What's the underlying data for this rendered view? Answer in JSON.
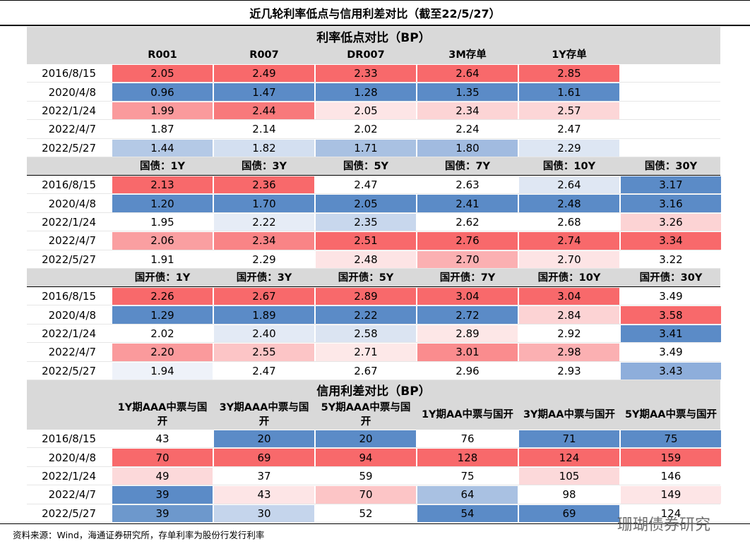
{
  "title": "近几轮利率低点与信用利差对比（截至22/5/27）",
  "sections": [
    {
      "heading": "利率低点对比（BP）",
      "columns": [
        "R001",
        "R007",
        "DR007",
        "3M存单",
        "1Y存单"
      ],
      "rows": [
        {
          "label": "2016/8/15",
          "cells": [
            "2.05",
            "2.49",
            "2.33",
            "2.64",
            "2.85"
          ],
          "colors": [
            "#f8696b",
            "#f8696b",
            "#f8696b",
            "#f8696b",
            "#f8696b"
          ]
        },
        {
          "label": "2020/4/8",
          "cells": [
            "0.96",
            "1.47",
            "1.28",
            "1.35",
            "1.61"
          ],
          "colors": [
            "#5b8bc7",
            "#5b8bc7",
            "#5b8bc7",
            "#5b8bc7",
            "#5b8bc7"
          ]
        },
        {
          "label": "2022/1/24",
          "cells": [
            "1.99",
            "2.44",
            "2.05",
            "2.34",
            "2.57"
          ],
          "colors": [
            "#fa9a9c",
            "#f8797b",
            "#fde5e6",
            "#fcd4d5",
            "#fcd6d7"
          ]
        },
        {
          "label": "2022/4/7",
          "cells": [
            "1.87",
            "2.14",
            "2.02",
            "2.24",
            "2.47"
          ],
          "colors": [
            "#ffffff",
            "#ffffff",
            "#ffffff",
            "#ffffff",
            "#ffffff"
          ]
        },
        {
          "label": "2022/5/27",
          "cells": [
            "1.44",
            "1.82",
            "1.71",
            "1.80",
            "2.29"
          ],
          "colors": [
            "#b4c9e6",
            "#d3dff0",
            "#a9c1e2",
            "#a1bbe0",
            "#dde6f3"
          ]
        }
      ]
    },
    {
      "columns": [
        "国债：1Y",
        "国债：3Y",
        "国债：5Y",
        "国债：7Y",
        "国债：10Y",
        "国债：30Y"
      ],
      "rows": [
        {
          "label": "2016/8/15",
          "cells": [
            "2.13",
            "2.36",
            "2.47",
            "2.63",
            "2.64",
            "3.17"
          ],
          "colors": [
            "#f8696b",
            "#f8696b",
            "#ffffff",
            "#ffffff",
            "#dfe7f3",
            "#5b8bc7"
          ]
        },
        {
          "label": "2020/4/8",
          "cells": [
            "1.20",
            "1.70",
            "2.05",
            "2.41",
            "2.48",
            "3.16"
          ],
          "colors": [
            "#5b8bc7",
            "#5b8bc7",
            "#5b8bc7",
            "#5b8bc7",
            "#5b8bc7",
            "#5b8bc7"
          ]
        },
        {
          "label": "2022/1/24",
          "cells": [
            "1.95",
            "2.22",
            "2.35",
            "2.62",
            "2.68",
            "3.26"
          ],
          "colors": [
            "#ffffff",
            "#e6ecf6",
            "#c8d7ed",
            "#ffffff",
            "#ffffff",
            "#fcd3d4"
          ]
        },
        {
          "label": "2022/4/7",
          "cells": [
            "2.06",
            "2.34",
            "2.51",
            "2.76",
            "2.74",
            "3.34"
          ],
          "colors": [
            "#fa9fa1",
            "#f98486",
            "#f8696b",
            "#f8696b",
            "#f8696b",
            "#f8696b"
          ]
        },
        {
          "label": "2022/5/27",
          "cells": [
            "1.91",
            "2.29",
            "2.48",
            "2.70",
            "2.70",
            "3.22"
          ],
          "colors": [
            "#ffffff",
            "#ffffff",
            "#fde4e5",
            "#fbb0b2",
            "#fde4e5",
            "#ffffff"
          ]
        }
      ]
    },
    {
      "columns": [
        "国开债：1Y",
        "国开债：3Y",
        "国开债：5Y",
        "国开债：7Y",
        "国开债：10Y",
        "国开债：30Y"
      ],
      "rows": [
        {
          "label": "2016/8/15",
          "cells": [
            "2.26",
            "2.67",
            "2.89",
            "3.04",
            "3.04",
            "3.49"
          ],
          "colors": [
            "#f8696b",
            "#f8696b",
            "#f8696b",
            "#f8696b",
            "#f8696b",
            "#ffffff"
          ]
        },
        {
          "label": "2020/4/8",
          "cells": [
            "1.29",
            "1.89",
            "2.22",
            "2.72",
            "2.84",
            "3.58"
          ],
          "colors": [
            "#5b8bc7",
            "#5b8bc7",
            "#5b8bc7",
            "#5b8bc7",
            "#fcd3d4",
            "#f8696b"
          ]
        },
        {
          "label": "2022/1/24",
          "cells": [
            "2.02",
            "2.40",
            "2.58",
            "2.89",
            "2.92",
            "3.41"
          ],
          "colors": [
            "#ffffff",
            "#e3eaf5",
            "#dbe4f2",
            "#fde7e7",
            "#ffffff",
            "#5b8bc7"
          ]
        },
        {
          "label": "2022/4/7",
          "cells": [
            "2.20",
            "2.55",
            "2.71",
            "3.01",
            "2.98",
            "3.49"
          ],
          "colors": [
            "#fa9a9c",
            "#fcc5c6",
            "#fde8e8",
            "#fa8c8e",
            "#fbb0b2",
            "#ffffff"
          ]
        },
        {
          "label": "2022/5/27",
          "cells": [
            "1.94",
            "2.47",
            "2.67",
            "2.96",
            "2.93",
            "3.43"
          ],
          "colors": [
            "#eef2f9",
            "#ffffff",
            "#ffffff",
            "#ffffff",
            "#ffffff",
            "#8eaedb"
          ]
        }
      ]
    },
    {
      "heading": "信用利差对比（BP）",
      "columns": [
        "1Y期AAA中票与国开",
        "3Y期AAA中票与国开",
        "5Y期AAA中票与国开",
        "1Y期AA中票与国开",
        "3Y期AA中票与国开",
        "5Y期AA中票与国开"
      ],
      "rows": [
        {
          "label": "2016/8/15",
          "cells": [
            "43",
            "20",
            "20",
            "76",
            "71",
            "75"
          ],
          "colors": [
            "#ffffff",
            "#5b8bc7",
            "#5b8bc7",
            "#ffffff",
            "#5b8bc7",
            "#5b8bc7"
          ]
        },
        {
          "label": "2020/4/8",
          "cells": [
            "70",
            "69",
            "94",
            "128",
            "124",
            "159"
          ],
          "colors": [
            "#f8696b",
            "#f8696b",
            "#f8696b",
            "#f8696b",
            "#f8696b",
            "#f8696b"
          ]
        },
        {
          "label": "2022/1/24",
          "cells": [
            "49",
            "37",
            "59",
            "75",
            "105",
            "146"
          ],
          "colors": [
            "#fcd9da",
            "#ffffff",
            "#ffffff",
            "#ffffff",
            "#fcd9da",
            "#ffffff"
          ]
        },
        {
          "label": "2022/4/7",
          "cells": [
            "39",
            "43",
            "70",
            "64",
            "98",
            "149"
          ],
          "colors": [
            "#5b8bc7",
            "#fde5e6",
            "#fcc5c6",
            "#a9c1e2",
            "#ffffff",
            "#fde5e6"
          ]
        },
        {
          "label": "2022/5/27",
          "cells": [
            "39",
            "30",
            "52",
            "54",
            "69",
            "124"
          ],
          "colors": [
            "#6d98cc",
            "#c5d5ec",
            "#ffffff",
            "#5b8bc7",
            "#5b8bc7",
            "#ffffff"
          ]
        }
      ]
    }
  ],
  "source": "资料来源：Wind，海通证券研究所，存单利率为股份行发行利率",
  "watermark": "珊瑚债券研究"
}
